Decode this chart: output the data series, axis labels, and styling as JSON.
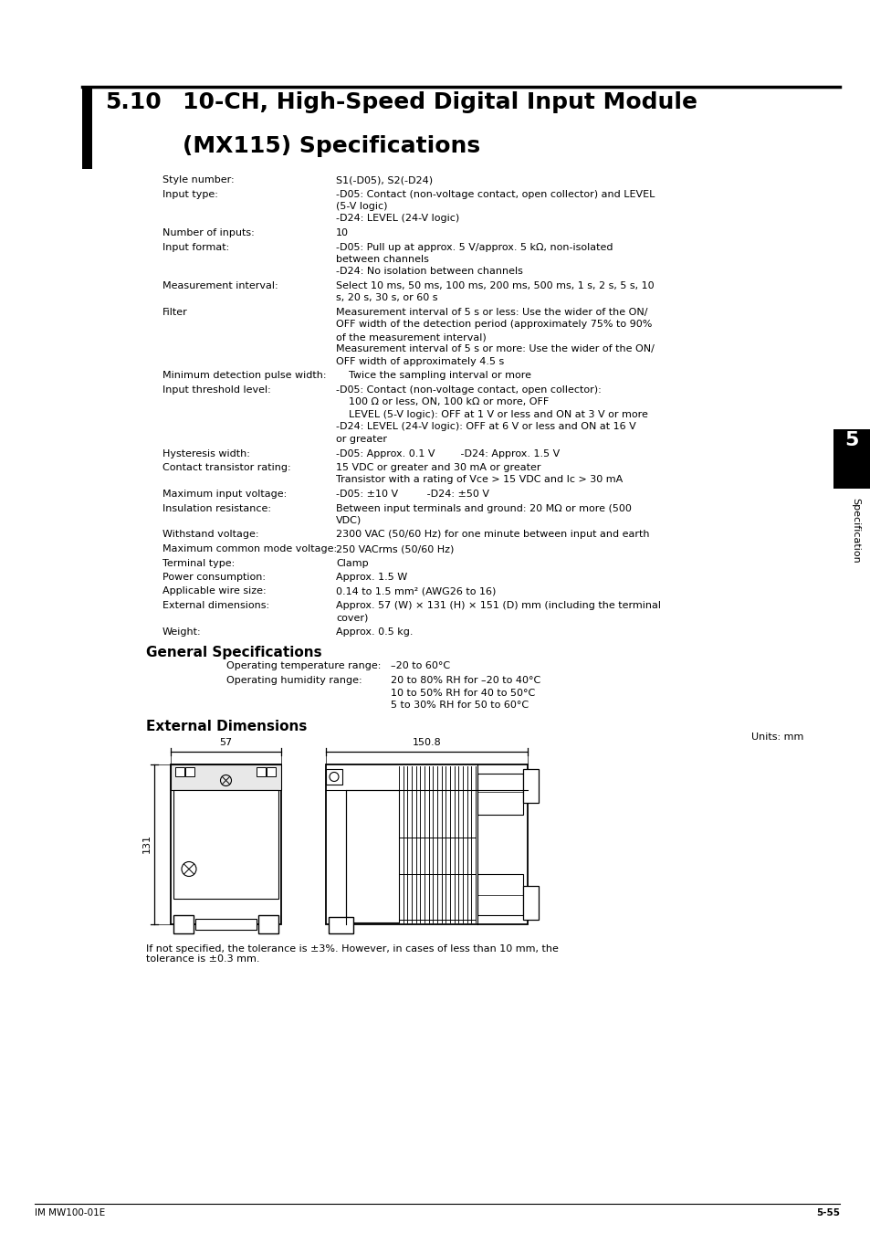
{
  "title_num": "5.10",
  "title_text": "10-CH, High-Speed Digital Input Module\n(MX115) Specifications",
  "bg_color": "#ffffff",
  "footer_left": "IM MW100-01E",
  "footer_right": "5-55",
  "specs": [
    [
      "Style number:",
      "S1(-D05), S2(-D24)"
    ],
    [
      "Input type:",
      "-D05: Contact (non-voltage contact, open collector) and LEVEL\n(5-V logic)\n-D24: LEVEL (24-V logic)"
    ],
    [
      "Number of inputs:",
      "10"
    ],
    [
      "Input format:",
      "-D05: Pull up at approx. 5 V/approx. 5 kΩ, non-isolated\nbetween channels\n-D24: No isolation between channels"
    ],
    [
      "Measurement interval:",
      "Select 10 ms, 50 ms, 100 ms, 200 ms, 500 ms, 1 s, 2 s, 5 s, 10\ns, 20 s, 30 s, or 60 s"
    ],
    [
      "Filter",
      "Measurement interval of 5 s or less: Use the wider of the ON/\nOFF width of the detection period (approximately 75% to 90%\nof the measurement interval)\nMeasurement interval of 5 s or more: Use the wider of the ON/\nOFF width of approximately 4.5 s"
    ],
    [
      "Minimum detection pulse width:",
      "    Twice the sampling interval or more"
    ],
    [
      "Input threshold level:",
      "-D05: Contact (non-voltage contact, open collector):\n    100 Ω or less, ON, 100 kΩ or more, OFF\n    LEVEL (5-V logic): OFF at 1 V or less and ON at 3 V or more\n-D24: LEVEL (24-V logic): OFF at 6 V or less and ON at 16 V\nor greater"
    ],
    [
      "Hysteresis width:",
      "-D05: Approx. 0.1 V        -D24: Approx. 1.5 V"
    ],
    [
      "Contact transistor rating:",
      "15 VDC or greater and 30 mA or greater\nTransistor with a rating of Vce > 15 VDC and Ic > 30 mA"
    ],
    [
      "Maximum input voltage:",
      "-D05: ±10 V         -D24: ±50 V"
    ],
    [
      "Insulation resistance:",
      "Between input terminals and ground: 20 MΩ or more (500\nVDC)"
    ],
    [
      "Withstand voltage:",
      "2300 VAC (50/60 Hz) for one minute between input and earth"
    ],
    [
      "Maximum common mode voltage:",
      "250 VACrms (50/60 Hz)"
    ],
    [
      "Terminal type:",
      "Clamp"
    ],
    [
      "Power consumption:",
      "Approx. 1.5 W"
    ],
    [
      "Applicable wire size:",
      "0.14 to 1.5 mm² (AWG26 to 16)"
    ],
    [
      "External dimensions:",
      "Approx. 57 (W) × 131 (H) × 151 (D) mm (including the terminal\ncover)"
    ],
    [
      "Weight:",
      "Approx. 0.5 kg."
    ]
  ],
  "gen_spec_title": "General Specifications",
  "gen_specs": [
    [
      "Operating temperature range:",
      "–20 to 60°C"
    ],
    [
      "Operating humidity range:",
      "20 to 80% RH for –20 to 40°C\n10 to 50% RH for 40 to 50°C\n5 to 30% RH for 50 to 60°C"
    ]
  ],
  "ext_dim_title": "External Dimensions",
  "ext_dim_note": "Units: mm",
  "tolerance_note": "If not specified, the tolerance is ±3%. However, in cases of less than 10 mm, the\ntolerance is ±0.3 mm."
}
